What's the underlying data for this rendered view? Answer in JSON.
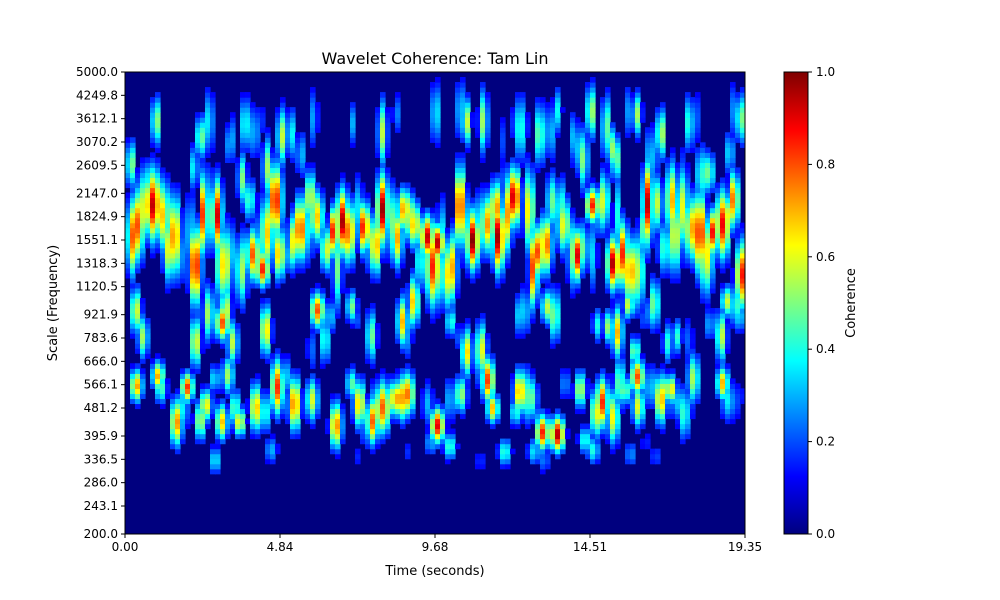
{
  "chart_data": {
    "type": "heatmap",
    "title": "Wavelet Coherence: Tam Lin",
    "xlabel": "Time (seconds)",
    "ylabel": "Scale (Frequency)",
    "xlim": [
      0.0,
      19.35
    ],
    "x_ticks": [
      "0.00",
      "4.84",
      "9.68",
      "14.51",
      "19.35"
    ],
    "y_ticks": [
      "200.0",
      "243.1",
      "286.0",
      "336.5",
      "395.9",
      "481.2",
      "566.1",
      "666.0",
      "783.6",
      "921.9",
      "1120.5",
      "1318.3",
      "1551.1",
      "1824.9",
      "2147.0",
      "2609.5",
      "3070.2",
      "3612.1",
      "4249.8",
      "5000.0"
    ],
    "colormap": "jet",
    "colorbar": {
      "label": "Coherence",
      "range": [
        0.0,
        1.0
      ],
      "ticks": [
        "0.0",
        "0.2",
        "0.4",
        "0.6",
        "0.8",
        "1.0"
      ]
    },
    "description_of_pattern": [
      {
        "scale_range": [
          1120.5,
          2147.0
        ],
        "level": "high",
        "note": "dense vertical streaks of 0.4-1.0 coherence across entire time range"
      },
      {
        "scale_range": [
          395.9,
          566.1
        ],
        "level": "high",
        "note": "frequent blobs 0.4-0.9, peaks near 9.68s, 12.5s, 13s"
      },
      {
        "scale_range": [
          200.0,
          286.0
        ],
        "level": "low",
        "note": "near zero coherence"
      },
      {
        "scale_range": [
          4249.8,
          5000.0
        ],
        "level": "low",
        "note": "near zero coherence"
      }
    ]
  }
}
